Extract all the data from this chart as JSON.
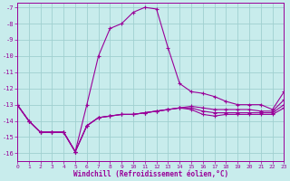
{
  "xlabel": "Windchill (Refroidissement éolien,°C)",
  "bg_color": "#c8ecec",
  "grid_color": "#a0d0d0",
  "line_color": "#990099",
  "xlim": [
    0,
    23
  ],
  "ylim": [
    -16.5,
    -6.7
  ],
  "yticks": [
    -7,
    -8,
    -9,
    -10,
    -11,
    -12,
    -13,
    -14,
    -15,
    -16
  ],
  "xticks": [
    0,
    1,
    2,
    3,
    4,
    5,
    6,
    7,
    8,
    9,
    10,
    11,
    12,
    13,
    14,
    15,
    16,
    17,
    18,
    19,
    20,
    21,
    22,
    23
  ],
  "lines": [
    {
      "x": [
        0,
        1,
        2,
        3,
        4,
        5,
        6,
        7,
        8,
        9,
        10,
        11,
        12,
        13,
        14,
        15,
        16,
        17,
        18,
        19,
        20,
        21,
        22,
        23
      ],
      "y": [
        -13.0,
        -14.0,
        -14.7,
        -14.7,
        -14.7,
        -15.9,
        -13.0,
        -10.0,
        -8.3,
        -8.0,
        -7.3,
        -7.0,
        -7.1,
        -9.5,
        -11.7,
        -12.2,
        -12.3,
        -12.5,
        -12.8,
        -13.0,
        -13.0,
        -13.0,
        -13.3,
        -12.2
      ]
    },
    {
      "x": [
        0,
        1,
        2,
        3,
        4,
        5,
        6,
        7,
        8,
        9,
        10,
        11,
        12,
        13,
        14,
        15,
        16,
        17,
        18,
        19,
        20,
        21,
        22,
        23
      ],
      "y": [
        -13.0,
        -14.0,
        -14.7,
        -14.7,
        -14.7,
        -15.9,
        -14.3,
        -13.8,
        -13.7,
        -13.6,
        -13.6,
        -13.5,
        -13.4,
        -13.3,
        -13.2,
        -13.1,
        -13.2,
        -13.3,
        -13.3,
        -13.3,
        -13.3,
        -13.4,
        -13.4,
        -12.7
      ]
    },
    {
      "x": [
        0,
        1,
        2,
        3,
        4,
        5,
        6,
        7,
        8,
        9,
        10,
        11,
        12,
        13,
        14,
        15,
        16,
        17,
        18,
        19,
        20,
        21,
        22,
        23
      ],
      "y": [
        -13.0,
        -14.0,
        -14.7,
        -14.7,
        -14.7,
        -15.9,
        -14.3,
        -13.8,
        -13.7,
        -13.6,
        -13.6,
        -13.5,
        -13.4,
        -13.3,
        -13.2,
        -13.2,
        -13.4,
        -13.5,
        -13.5,
        -13.5,
        -13.5,
        -13.5,
        -13.5,
        -13.0
      ]
    },
    {
      "x": [
        0,
        1,
        2,
        3,
        4,
        5,
        6,
        7,
        8,
        9,
        10,
        11,
        12,
        13,
        14,
        15,
        16,
        17,
        18,
        19,
        20,
        21,
        22,
        23
      ],
      "y": [
        -13.0,
        -14.0,
        -14.7,
        -14.7,
        -14.7,
        -15.9,
        -14.3,
        -13.8,
        -13.7,
        -13.6,
        -13.6,
        -13.5,
        -13.4,
        -13.3,
        -13.2,
        -13.3,
        -13.6,
        -13.7,
        -13.6,
        -13.6,
        -13.6,
        -13.6,
        -13.6,
        -13.2
      ]
    }
  ]
}
